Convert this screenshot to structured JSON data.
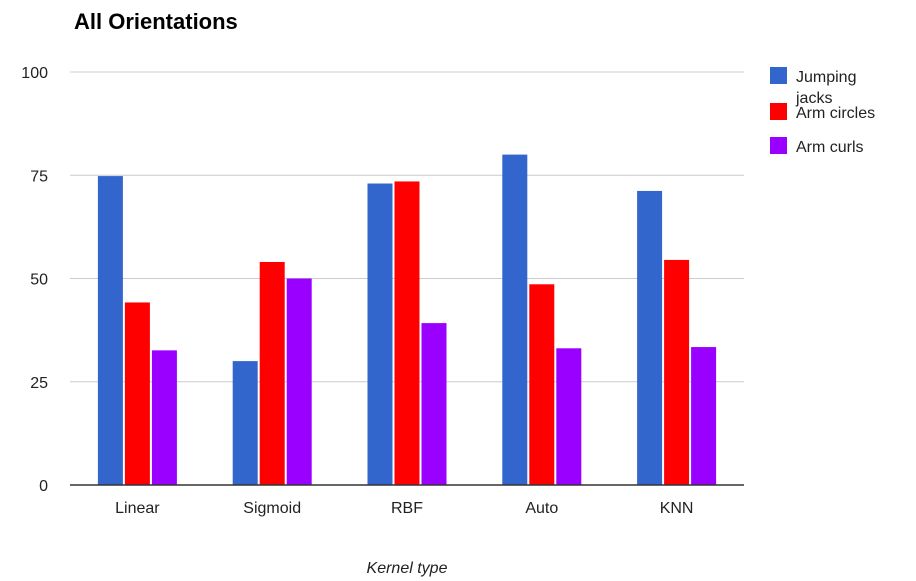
{
  "chart_data": {
    "type": "bar",
    "title": "All Orientations",
    "xlabel": "Kernel type",
    "ylabel": "",
    "ylim": [
      0,
      100
    ],
    "yticks": [
      0,
      25,
      50,
      75,
      100
    ],
    "grid": true,
    "legend_position": "right",
    "categories": [
      "Linear",
      "Sigmoid",
      "RBF",
      "Auto",
      "KNN"
    ],
    "series": [
      {
        "name": "Jumping jacks",
        "name_lines": [
          "Jumping",
          "jacks"
        ],
        "color": "#3366cc",
        "values": [
          74.8,
          30,
          73,
          80,
          71.2
        ]
      },
      {
        "name": "Arm circles",
        "name_lines": [
          "Arm circles"
        ],
        "color": "#ff0000",
        "values": [
          44.2,
          54,
          73.5,
          48.6,
          54.5
        ]
      },
      {
        "name": "Arm curls",
        "name_lines": [
          "Arm curls"
        ],
        "color": "#9900ff",
        "values": [
          32.6,
          50,
          39.2,
          33.1,
          33.4
        ]
      }
    ]
  }
}
